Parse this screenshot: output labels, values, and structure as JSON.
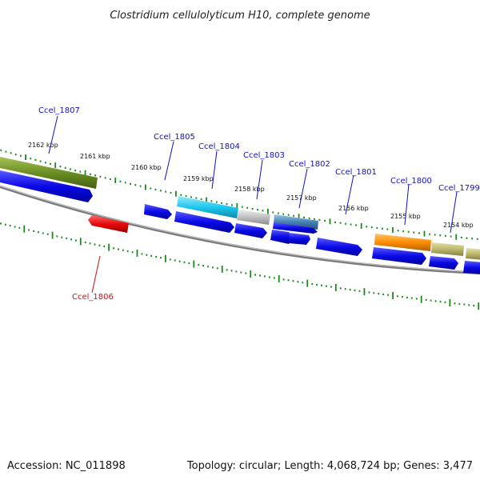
{
  "header": {
    "title": "Clostridium cellulolyticum H10, complete genome"
  },
  "footer": {
    "accession": "Accession: NC_011898",
    "summary": "Topology: circular; Length: 4,068,724 bp; Genes: 3,477"
  },
  "kbp_labels": [
    "2162 kbp",
    "2161 kbp",
    "2160 kbp",
    "2159 kbp",
    "2158 kbp",
    "2157 kbp",
    "2156 kbp",
    "2155 kbp",
    "2154 kbp"
  ],
  "gene_labels": [
    "Ccel_1807",
    "Ccel_1805",
    "Ccel_1804",
    "Ccel_1803",
    "Ccel_1802",
    "Ccel_1801",
    "Ccel_1800",
    "Ccel_1799",
    "Ccel_1806"
  ],
  "colors": {
    "cds_blue": "#0a0ae6",
    "reverse_cds_red": "#e60a0a",
    "olive": "#6b8e23",
    "cyan": "#1ec8f0",
    "silver": "#c0c0c0",
    "steel": "#4682b4",
    "orange": "#ff8c00",
    "khaki": "#bdb76b",
    "gc_skew_green": "#1a8a1a",
    "backbone": "#808080"
  }
}
